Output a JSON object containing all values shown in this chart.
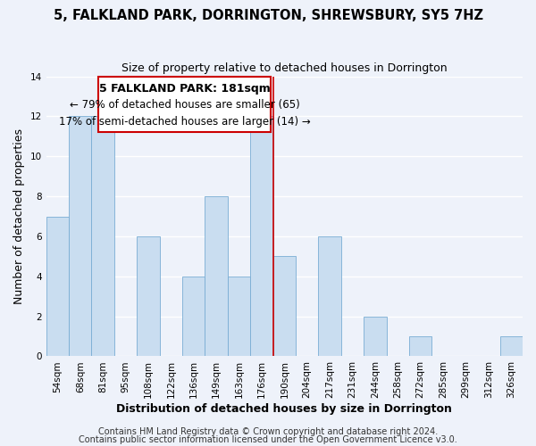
{
  "title": "5, FALKLAND PARK, DORRINGTON, SHREWSBURY, SY5 7HZ",
  "subtitle": "Size of property relative to detached houses in Dorrington",
  "xlabel": "Distribution of detached houses by size in Dorrington",
  "ylabel": "Number of detached properties",
  "bar_labels": [
    "54sqm",
    "68sqm",
    "81sqm",
    "95sqm",
    "108sqm",
    "122sqm",
    "136sqm",
    "149sqm",
    "163sqm",
    "176sqm",
    "190sqm",
    "204sqm",
    "217sqm",
    "231sqm",
    "244sqm",
    "258sqm",
    "272sqm",
    "285sqm",
    "299sqm",
    "312sqm",
    "326sqm"
  ],
  "bar_values": [
    7,
    12,
    12,
    0,
    6,
    0,
    4,
    8,
    4,
    12,
    5,
    0,
    6,
    0,
    2,
    0,
    1,
    0,
    0,
    0,
    1
  ],
  "bar_color": "#c9ddf0",
  "bar_edge_color": "#7aadd4",
  "property_line_index": 9.5,
  "annotation_title": "5 FALKLAND PARK: 181sqm",
  "annotation_line1": "← 79% of detached houses are smaller (65)",
  "annotation_line2": "17% of semi-detached houses are larger (14) →",
  "annotation_box_color": "#ffffff",
  "annotation_box_edge": "#cc0000",
  "vline_color": "#cc0000",
  "ylim": [
    0,
    14
  ],
  "yticks": [
    0,
    2,
    4,
    6,
    8,
    10,
    12,
    14
  ],
  "footer1": "Contains HM Land Registry data © Crown copyright and database right 2024.",
  "footer2": "Contains public sector information licensed under the Open Government Licence v3.0.",
  "background_color": "#eef2fa",
  "plot_bg_color": "#eef2fa",
  "grid_color": "#ffffff",
  "title_fontsize": 10.5,
  "subtitle_fontsize": 9,
  "axis_label_fontsize": 9,
  "tick_fontsize": 7.5,
  "annotation_title_fontsize": 9,
  "annotation_line_fontsize": 8.5,
  "footer_fontsize": 7
}
